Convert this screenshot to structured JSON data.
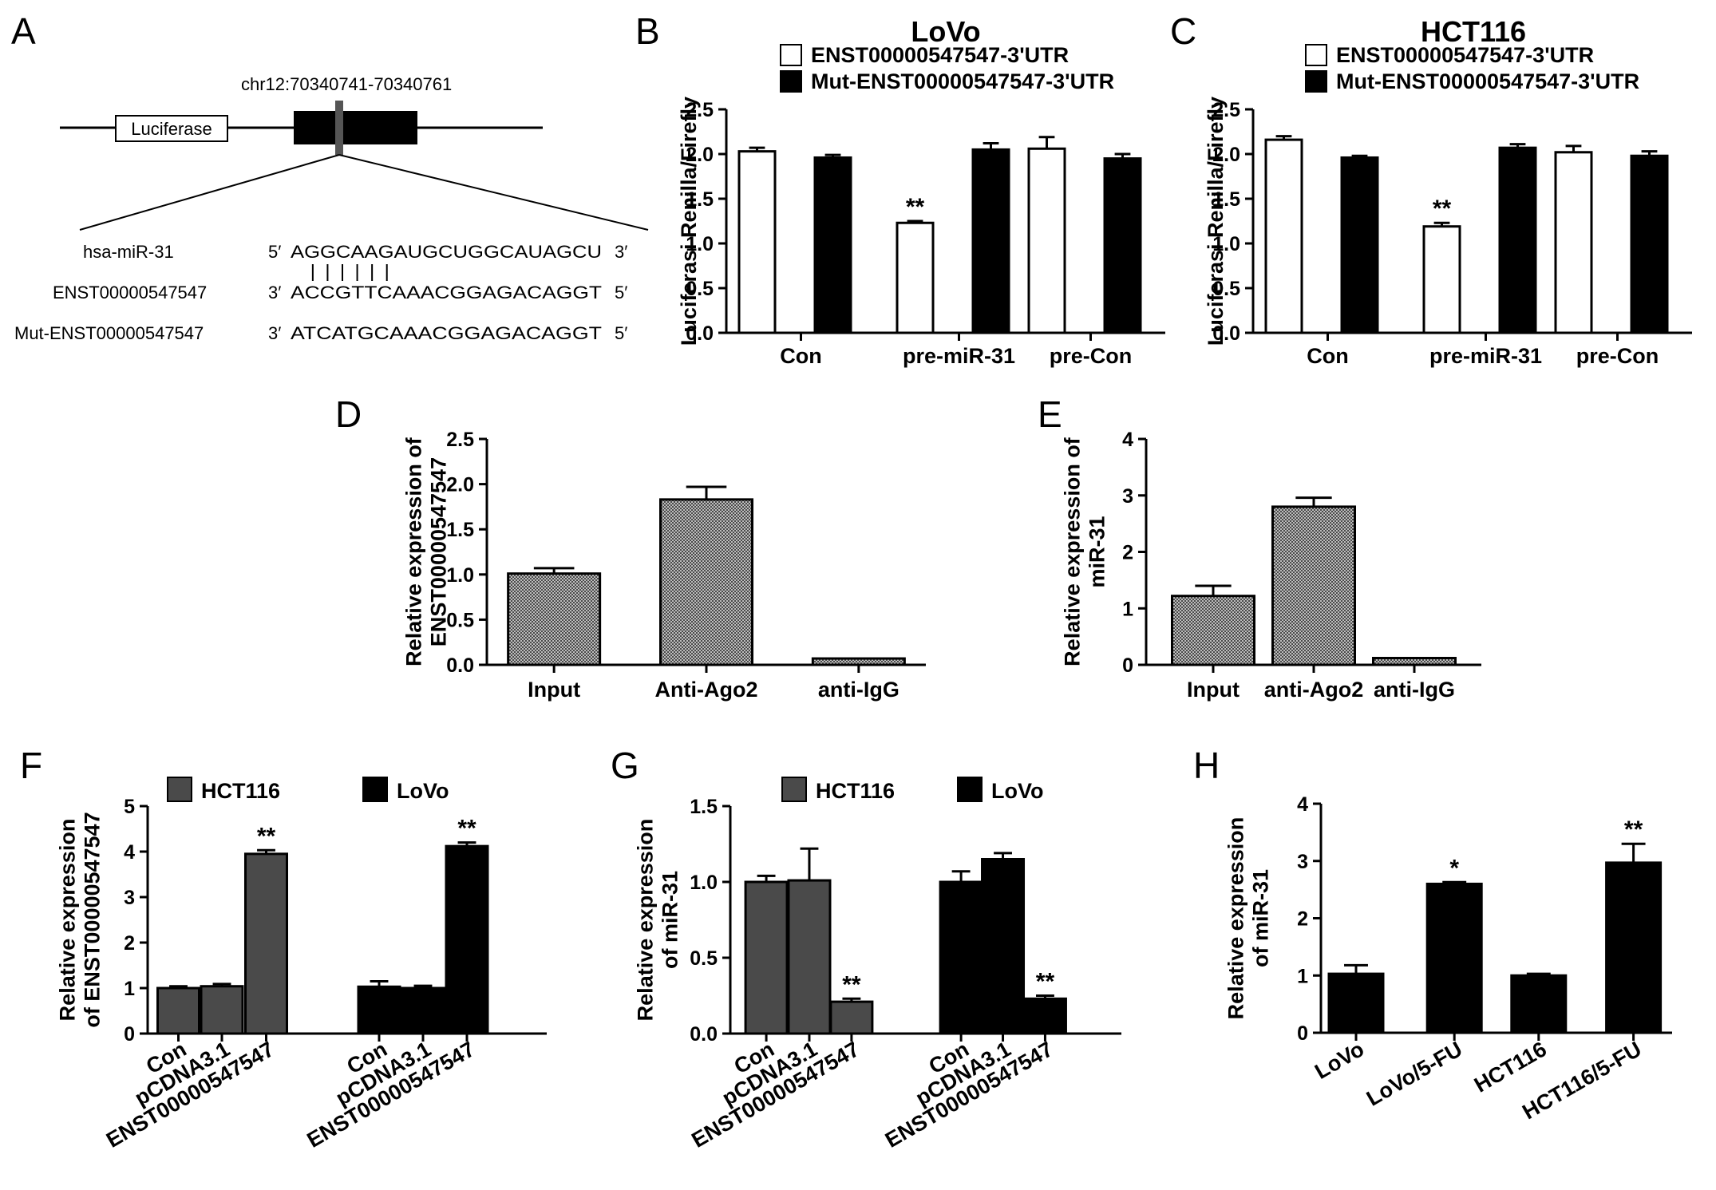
{
  "panel_a": {
    "letter": "A",
    "coord": "chr12:70340741-70340761",
    "box_label": "Luciferase",
    "rows": [
      {
        "name": "hsa-miR-31",
        "p1": "5′",
        "seq": "AGGCAAGAUGCUGGCAUAGCU",
        "p2": "3′"
      },
      {
        "name": "ENST00000547547",
        "p1": "3′",
        "seq": "ACCGTTCAAACGGAGACAGGT",
        "p2": "5′"
      },
      {
        "name": "Mut-ENST00000547547",
        "p1": "3′",
        "seq": "ATCATGCAAACGGAGACAGGT",
        "p2": "5′"
      }
    ]
  },
  "colors": {
    "white": "#ffffff",
    "black": "#000000",
    "grey": "#4a4a4a",
    "dotted": "#9a9a9a"
  },
  "chart_data": [
    {
      "id": "B",
      "letter": "B",
      "type": "bar",
      "title": "LoVo",
      "ylabel": "Luciferasi Renilla/Firefly",
      "xlabel": "",
      "ylim": [
        0,
        2.5
      ],
      "yticks": [
        "0.0",
        "0.5",
        "1.0",
        "1.5",
        "2.0",
        "2.5"
      ],
      "categories": [
        "Con",
        "pre-miR-31",
        "pre-Con"
      ],
      "series": [
        {
          "name": "ENST00000547547-3'UTR",
          "fill": "white",
          "values": [
            2.03,
            1.23,
            2.06
          ],
          "errors": [
            0.04,
            0.02,
            0.13
          ]
        },
        {
          "name": "Mut-ENST00000547547-3'UTR",
          "fill": "black",
          "values": [
            1.96,
            2.05,
            1.95
          ],
          "errors": [
            0.03,
            0.07,
            0.05
          ]
        }
      ],
      "annotations": [
        {
          "category": 1,
          "series": 0,
          "text": "**"
        }
      ],
      "legend": "top"
    },
    {
      "id": "C",
      "letter": "C",
      "type": "bar",
      "title": "HCT116",
      "ylabel": "Luciferasi Renilla/Firefly",
      "xlabel": "",
      "ylim": [
        0,
        2.5
      ],
      "yticks": [
        "0.0",
        "0.5",
        "1.0",
        "1.5",
        "2.0",
        "2.5"
      ],
      "categories": [
        "Con",
        "pre-miR-31",
        "pre-Con"
      ],
      "series": [
        {
          "name": "ENST00000547547-3'UTR",
          "fill": "white",
          "values": [
            2.16,
            1.19,
            2.02
          ],
          "errors": [
            0.04,
            0.04,
            0.07
          ]
        },
        {
          "name": "Mut-ENST00000547547-3'UTR",
          "fill": "black",
          "values": [
            1.96,
            2.07,
            1.98
          ],
          "errors": [
            0.02,
            0.04,
            0.05
          ]
        }
      ],
      "annotations": [
        {
          "category": 1,
          "series": 0,
          "text": "**"
        }
      ],
      "legend": "top"
    },
    {
      "id": "D",
      "letter": "D",
      "type": "bar",
      "title": "",
      "ylabel": "Relative expression of ENST00000547547",
      "xlabel": "",
      "ylim": [
        0,
        2.5
      ],
      "yticks": [
        "0.0",
        "0.5",
        "1.0",
        "1.5",
        "2.0",
        "2.5"
      ],
      "categories": [
        "Input",
        "Anti-Ago2",
        "anti-IgG"
      ],
      "series": [
        {
          "name": "",
          "fill": "dotted",
          "values": [
            1.01,
            1.83,
            0.07
          ],
          "errors": [
            0.06,
            0.14,
            0.0
          ]
        }
      ],
      "annotations": [],
      "legend": "none"
    },
    {
      "id": "E",
      "letter": "E",
      "type": "bar",
      "title": "",
      "ylabel": "Relative expression of miR-31",
      "xlabel": "",
      "ylim": [
        0,
        4
      ],
      "yticks": [
        "0",
        "1",
        "2",
        "3",
        "4"
      ],
      "categories": [
        "Input",
        "anti-Ago2",
        "anti-IgG"
      ],
      "series": [
        {
          "name": "",
          "fill": "dotted",
          "values": [
            1.22,
            2.8,
            0.12
          ],
          "errors": [
            0.18,
            0.16,
            0.0
          ]
        }
      ],
      "annotations": [],
      "legend": "none"
    },
    {
      "id": "F",
      "letter": "F",
      "type": "bar",
      "title": "",
      "ylabel": "Relative expression of ENST00000547547",
      "xlabel": "",
      "ylim": [
        0,
        5
      ],
      "yticks": [
        "0",
        "1",
        "2",
        "3",
        "4",
        "5"
      ],
      "categories": [
        "Con",
        "pCDNA3.1",
        "ENST00000547547",
        "Con",
        "pCDNA3.1",
        "ENST00000547547"
      ],
      "series": [
        {
          "name": "HCT116",
          "fill": "grey",
          "values": [
            1.0,
            1.04,
            3.95,
            null,
            null,
            null
          ],
          "errors": [
            0.04,
            0.05,
            0.08,
            null,
            null,
            null
          ]
        },
        {
          "name": "LoVo",
          "fill": "black",
          "values": [
            null,
            null,
            null,
            1.03,
            1.0,
            4.12
          ],
          "errors": [
            null,
            null,
            null,
            0.12,
            0.05,
            0.08
          ]
        }
      ],
      "annotations": [
        {
          "category": 2,
          "series": 0,
          "text": "**"
        },
        {
          "category": 5,
          "series": 1,
          "text": "**"
        }
      ],
      "legend": "top"
    },
    {
      "id": "G",
      "letter": "G",
      "type": "bar",
      "title": "",
      "ylabel": "Relative expression of miR-31",
      "xlabel": "",
      "ylim": [
        0,
        1.5
      ],
      "yticks": [
        "0.0",
        "0.5",
        "1.0",
        "1.5"
      ],
      "categories": [
        "Con",
        "pCDNA3.1",
        "ENST00000547547",
        "Con",
        "pCDNA3.1",
        "ENST00000547547"
      ],
      "series": [
        {
          "name": "HCT116",
          "fill": "grey",
          "values": [
            1.0,
            1.01,
            0.21,
            null,
            null,
            null
          ],
          "errors": [
            0.04,
            0.21,
            0.02,
            null,
            null,
            null
          ]
        },
        {
          "name": "LoVo",
          "fill": "black",
          "values": [
            null,
            null,
            null,
            1.0,
            1.15,
            0.23
          ],
          "errors": [
            null,
            null,
            null,
            0.07,
            0.04,
            0.02
          ]
        }
      ],
      "annotations": [
        {
          "category": 2,
          "series": 0,
          "text": "**"
        },
        {
          "category": 5,
          "series": 1,
          "text": "**"
        }
      ],
      "legend": "top"
    },
    {
      "id": "H",
      "letter": "H",
      "type": "bar",
      "title": "",
      "ylabel": "Relative expression of miR-31",
      "xlabel": "",
      "ylim": [
        0,
        4
      ],
      "yticks": [
        "0",
        "1",
        "2",
        "3",
        "4"
      ],
      "categories": [
        "LoVo",
        "LoVo/5-FU",
        "HCT116",
        "HCT116/5-FU"
      ],
      "series": [
        {
          "name": "",
          "fill": "black",
          "values": [
            1.03,
            2.6,
            1.0,
            2.97
          ],
          "errors": [
            0.15,
            0.03,
            0.03,
            0.33
          ]
        }
      ],
      "annotations": [
        {
          "category": 1,
          "series": 0,
          "text": "*"
        },
        {
          "category": 3,
          "series": 0,
          "text": "**"
        }
      ],
      "legend": "none"
    }
  ]
}
